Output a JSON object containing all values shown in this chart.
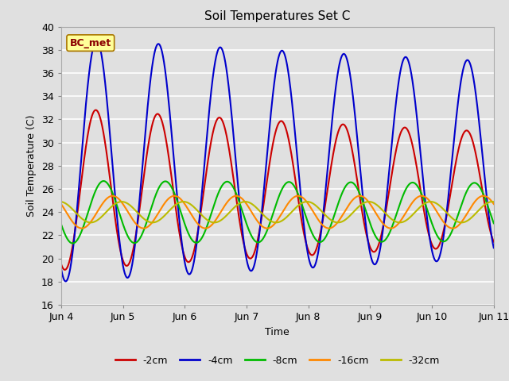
{
  "title": "Soil Temperatures Set C",
  "xlabel": "Time",
  "ylabel": "Soil Temperature (C)",
  "ylim": [
    16,
    40
  ],
  "yticks": [
    16,
    18,
    20,
    22,
    24,
    26,
    28,
    30,
    32,
    34,
    36,
    38,
    40
  ],
  "xtick_labels": [
    "Jun 4",
    "Jun 5",
    "Jun 6",
    "Jun 7",
    "Jun 8",
    "Jun 9",
    "Jun 10",
    "Jun 11"
  ],
  "annotation_text": "BC_met",
  "annotation_bg": "#ffff99",
  "annotation_border": "#aa7700",
  "annotation_text_color": "#8b0000",
  "series_params": [
    {
      "label": "-2cm",
      "color": "#cc0000",
      "mean": 26.0,
      "amp": 7.0,
      "peak_hour": 13.5,
      "decay": 0.05
    },
    {
      "label": "-4cm",
      "color": "#0000cc",
      "mean": 28.5,
      "amp": 10.5,
      "peak_hour": 13.8,
      "decay": 0.03
    },
    {
      "label": "-8cm",
      "color": "#00bb00",
      "mean": 24.0,
      "amp": 2.7,
      "peak_hour": 16.5,
      "decay": 0.01
    },
    {
      "label": "-16cm",
      "color": "#ff8800",
      "mean": 24.0,
      "amp": 1.4,
      "peak_hour": 20.0,
      "decay": 0.0
    },
    {
      "label": "-32cm",
      "color": "#bbbb00",
      "mean": 24.0,
      "amp": 0.9,
      "peak_hour": 23.5,
      "decay": 0.0
    }
  ],
  "bg_color": "#e0e0e0",
  "plot_bg_color": "#e0e0e0",
  "grid_color": "#ffffff",
  "linewidth": 1.5,
  "figsize": [
    6.4,
    4.8
  ],
  "dpi": 100
}
